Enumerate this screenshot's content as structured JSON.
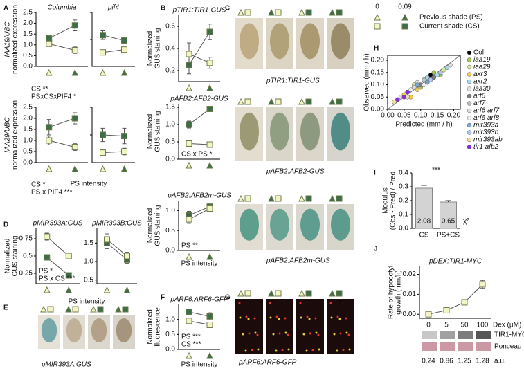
{
  "legend": {
    "ps_values": [
      0,
      0.09
    ],
    "previous": "Previous shade (PS)",
    "current": "Current shade (CS)"
  },
  "panel_labels": [
    "A",
    "B",
    "C",
    "D",
    "E",
    "F",
    "G",
    "H",
    "I",
    "J"
  ],
  "A": {
    "charts": [
      {
        "title": "Columbia",
        "ylabel": [
          "IAA19/UBC",
          "normalized expression"
        ],
        "ylim": [
          0,
          2.5
        ],
        "yticks": [
          {
            "value": 0,
            "label": "0.0"
          },
          0.5,
          {
            "value": 1,
            "label": "1.0"
          },
          1.5,
          {
            "value": 2,
            "label": "2.0"
          },
          2.5
        ],
        "series": [
          {
            "color": "#3d6e47",
            "values": [
              1.3,
              1.9
            ],
            "errors": [
              0.15,
              0.25
            ]
          },
          {
            "color": "#f3f4c4",
            "values": [
              1.05,
              0.75
            ],
            "errors": [
              0.1,
              0.15
            ]
          }
        ]
      },
      {
        "title": "pif4",
        "ylim": [
          0,
          2.5
        ],
        "series": [
          {
            "color": "#3d6e47",
            "values": [
              1.45,
              1.2
            ],
            "errors": [
              0.2,
              0.15
            ]
          },
          {
            "color": "#f3f4c4",
            "values": [
              0.65,
              0.78
            ],
            "errors": [
              0.1,
              0.1
            ]
          }
        ]
      },
      {
        "ylabel": [
          "IAA29/UBC",
          "normalized expression"
        ],
        "ylim": [
          0,
          2.5
        ],
        "yticks": [
          {
            "value": 0,
            "label": "0.0"
          },
          0.5,
          {
            "value": 1,
            "label": "1.0"
          },
          1.5,
          {
            "value": 2,
            "label": "2.0"
          },
          2.5
        ],
        "series": [
          {
            "color": "#3d6e47",
            "values": [
              1.6,
              2.0
            ],
            "errors": [
              0.35,
              0.25
            ]
          },
          {
            "color": "#f3f4c4",
            "values": [
              1.0,
              0.7
            ],
            "errors": [
              0.2,
              0.15
            ]
          }
        ]
      },
      {
        "ylim": [
          0,
          2.5
        ],
        "series": [
          {
            "color": "#3d6e47",
            "values": [
              1.25,
              1.2
            ],
            "errors": [
              0.3,
              0.35
            ]
          },
          {
            "color": "#f3f4c4",
            "values": [
              0.45,
              0.5
            ],
            "errors": [
              0.15,
              0.15
            ]
          }
        ]
      }
    ],
    "notes_top": [
      "CS **",
      "PSxCSxPIF4 *"
    ],
    "notes_bottom": [
      "CS *",
      "PS x PIF4 ***"
    ],
    "xlabel": "PS intensity"
  },
  "B": {
    "charts": [
      {
        "title": "pTIR1:TIR1-GUS",
        "ylabel": [
          "Normalized",
          "GUS staining"
        ],
        "ylim": [
          0.1,
          0.7
        ],
        "yticks": [
          0.2,
          0.4,
          0.6
        ],
        "series": [
          {
            "color": "#3d6e47",
            "values": [
              0.25,
              0.55
            ],
            "errors": [
              0.08,
              0.07
            ]
          },
          {
            "color": "#f3f4c4",
            "values": [
              0.35,
              0.27
            ],
            "errors": [
              0.1,
              0.05
            ]
          }
        ]
      },
      {
        "title": "pAFB2:AFB2-GUS",
        "ylabel": [
          "Normalized",
          "GUS staining"
        ],
        "ylim": [
          0,
          1.6
        ],
        "yticks": [
          {
            "value": 0,
            "label": "0.0"
          },
          0.5,
          {
            "value": 1,
            "label": "1.0"
          },
          1.5
        ],
        "notes": [
          "CS x PS *"
        ],
        "series": [
          {
            "color": "#3d6e47",
            "values": [
              1.0,
              1.45
            ],
            "errors": [
              0.1,
              0.05
            ]
          },
          {
            "color": "#f3f4c4",
            "values": [
              0.45,
              0.42
            ],
            "errors": [
              0.08,
              0.04
            ]
          }
        ]
      },
      {
        "title": "pAFB2:AFB2m-GUS",
        "ylabel": [
          "Normalized",
          "GUS staining"
        ],
        "ylim": [
          0,
          1.25
        ],
        "yticks": [
          {
            "value": 0,
            "label": "0.0"
          },
          0.5,
          {
            "value": 1,
            "label": "1.0"
          }
        ],
        "notes": [
          "PS **"
        ],
        "series": [
          {
            "color": "#3d6e47",
            "values": [
              0.88,
              1.1
            ],
            "errors": [
              0.1,
              0.05
            ]
          },
          {
            "color": "#f3f4c4",
            "values": [
              0.78,
              1.05
            ],
            "errors": [
              0.1,
              0.05
            ]
          }
        ]
      }
    ],
    "xlabel": "PS intensity"
  },
  "C": {
    "captions": [
      "pTIR1:TIR1-GUS",
      "pAFB2:AFB2-GUS",
      "pAFB2:AFB2m-GUS"
    ]
  },
  "D": {
    "charts": [
      {
        "title": "pMIR393A:GUS",
        "ylabel": [
          "Normalized",
          "GUS staining"
        ],
        "ylim": [
          0.1,
          0.9
        ],
        "yticks": [
          0.25,
          0.5,
          0.75
        ],
        "notes": [
          "PS *",
          "PS x CS ***"
        ],
        "series": [
          {
            "color": "#3d6e47",
            "values": [
              0.48,
              0.22
            ],
            "errors": [
              0.03,
              0.02
            ]
          },
          {
            "color": "#f3f4c4",
            "values": [
              0.78,
              0.5
            ],
            "errors": [
              0.05,
              0.03
            ]
          }
        ]
      },
      {
        "title": "pMIR393B:GUS",
        "ylim": [
          0.4,
          1.9
        ],
        "yticks": [
          0.5,
          {
            "value": 1,
            "label": "1.0"
          },
          1.5
        ],
        "series": [
          {
            "color": "#3d6e47",
            "values": [
              1.5,
              1.05
            ],
            "errors": [
              0.15,
              0.1
            ]
          },
          {
            "color": "#f3f4c4",
            "values": [
              1.6,
              1.15
            ],
            "errors": [
              0.15,
              0.1
            ]
          }
        ]
      }
    ],
    "xlabel": "PS intensity"
  },
  "E": {
    "caption": "pMIR393A:GUS"
  },
  "F": {
    "chart": {
      "title": "pARF6:ARF6-GFP",
      "ylabel": [
        "Normalized",
        "fluorescence"
      ],
      "ylim": [
        0,
        1.5
      ],
      "yticks": [
        {
          "value": 0,
          "label": "0.0"
        },
        0.5,
        {
          "value": 1,
          "label": "1.0"
        }
      ],
      "notes": [
        "PS ***",
        "CS ***"
      ],
      "series": [
        {
          "color": "#3d6e47",
          "values": [
            1.25,
            1.1
          ],
          "errors": [
            0.1,
            0.12
          ]
        },
        {
          "color": "#f3f4c4",
          "values": [
            0.95,
            0.82
          ],
          "errors": [
            0.08,
            0.06
          ]
        }
      ]
    },
    "xlabel": "PS intensity"
  },
  "G": {
    "caption": "pARF6:ARF6-GFP"
  },
  "H": {
    "type": "scatter",
    "xlabel": "Predicted (mm / h)",
    "ylabel": "Observed (mm / h)",
    "xlim": [
      0,
      0.22
    ],
    "ylim": [
      0,
      0.22
    ],
    "xticks": [
      {
        "value": 0,
        "label": "0.00"
      },
      0.05,
      {
        "value": 0.1,
        "label": "0.10"
      },
      0.15,
      {
        "value": 0.2,
        "label": "0.20"
      }
    ],
    "yticks": [
      {
        "value": 0,
        "label": "0.00"
      },
      0.05,
      {
        "value": 0.1,
        "label": "0.10"
      },
      0.15,
      {
        "value": 0.2,
        "label": "0.20"
      }
    ],
    "series": [
      {
        "name": "Col",
        "color": "#000000",
        "x": [
          0.11,
          0.12,
          0.13
        ],
        "y": [
          0.12,
          0.11,
          0.14
        ]
      },
      {
        "name": "iaa19",
        "color": "#a6c84a",
        "x": [
          0.1,
          0.14,
          0.16
        ],
        "y": [
          0.09,
          0.15,
          0.14
        ]
      },
      {
        "name": "iaa29",
        "color": "#d6e89a",
        "x": [
          0.08,
          0.12,
          0.17
        ],
        "y": [
          0.1,
          0.13,
          0.16
        ]
      },
      {
        "name": "axr3",
        "color": "#f2cf4e",
        "x": [
          0.05,
          0.07,
          0.09
        ],
        "y": [
          0.06,
          0.05,
          0.08
        ]
      },
      {
        "name": "axr2",
        "color": "#a8d8ea",
        "x": [
          0.12,
          0.15,
          0.18
        ],
        "y": [
          0.13,
          0.14,
          0.17
        ]
      },
      {
        "name": "iaa30",
        "color": "#e2e2e2",
        "x": [
          0.09,
          0.13,
          0.19
        ],
        "y": [
          0.11,
          0.12,
          0.18
        ]
      },
      {
        "name": "arf6",
        "color": "#7d7d7d",
        "x": [
          0.1,
          0.14
        ],
        "y": [
          0.1,
          0.13
        ]
      },
      {
        "name": "arf7",
        "color": "#bdbdbd",
        "x": [
          0.06,
          0.11
        ],
        "y": [
          0.07,
          0.12
        ]
      },
      {
        "name": "arf6 arf7",
        "color": "#dcdcdc",
        "x": [
          0.04,
          0.08
        ],
        "y": [
          0.05,
          0.09
        ]
      },
      {
        "name": "arf6 arf8",
        "color": "#eeeeee",
        "x": [
          0.07,
          0.11
        ],
        "y": [
          0.08,
          0.1
        ]
      },
      {
        "name": "mir393a",
        "color": "#7ea6d8",
        "x": [
          0.09,
          0.12
        ],
        "y": [
          0.1,
          0.11
        ]
      },
      {
        "name": "mir393b",
        "color": "#b0c8f0",
        "x": [
          0.13,
          0.16
        ],
        "y": [
          0.12,
          0.15
        ]
      },
      {
        "name": "mir393ab",
        "color": "#efe0a0",
        "x": [
          0.02,
          0.06
        ],
        "y": [
          0.03,
          0.05
        ]
      },
      {
        "name": "tir1 afb2",
        "color": "#8a2be2",
        "x": [
          0.03,
          0.05,
          0.06
        ],
        "y": [
          0.04,
          0.05,
          0.07
        ]
      }
    ]
  },
  "I": {
    "type": "bar",
    "ylabel": [
      "Modulus",
      "(Obs - Pred) / Pred"
    ],
    "categories": [
      "CS",
      "PS+CS"
    ],
    "values": [
      0.29,
      0.19
    ],
    "errors": [
      0.02,
      0.01
    ],
    "color": "#d3d3d3",
    "ylim": [
      0,
      0.4
    ],
    "yticks": [
      {
        "value": 0,
        "label": "0.0"
      },
      0.1,
      0.2,
      0.3,
      0.4
    ],
    "significance": "***",
    "chi2": {
      "label": "χ²",
      "values": [
        2.08,
        0.65
      ]
    }
  },
  "J": {
    "chart": {
      "title": "pDEX:TIR1-MYC",
      "ylabel": [
        "Rate of hypocotyl",
        "growth (mm/h)"
      ],
      "xlabel": "Dex (µM)",
      "categories": [
        "0",
        "5",
        "50",
        "100"
      ],
      "ylim": [
        -0.002,
        0.024
      ],
      "yticks": [
        {
          "value": 0,
          "label": "0.00"
        },
        0.01,
        0.02
      ],
      "series": [
        {
          "color": "#f3f4c4",
          "values": [
            0,
            0.002,
            0.006,
            0.015
          ],
          "errors": [
            0.0005,
            0.0005,
            0.0008,
            0.002
          ]
        }
      ]
    },
    "blot": {
      "bands": [
        "TIR1-MYC",
        "Ponceau"
      ],
      "quantities": [
        0.24,
        0.86,
        1.25,
        1.28
      ],
      "unit": "a.u."
    }
  }
}
